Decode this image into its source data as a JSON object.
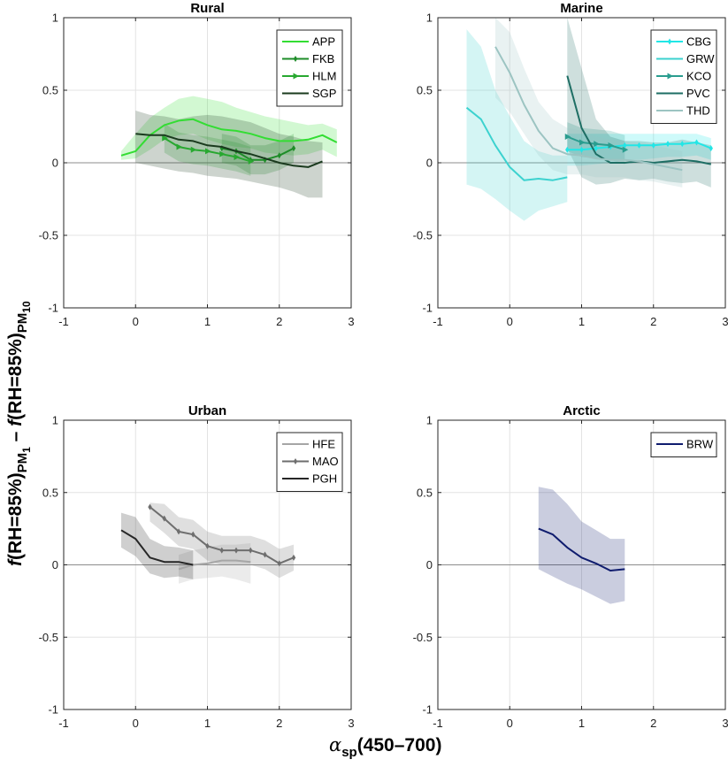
{
  "ylabel": {
    "f1": "f",
    "part1": "(RH=85%)",
    "sub1": "PM",
    "subsub1": "1",
    "minus": " – ",
    "f2": "f",
    "part2": "(RH=85%)",
    "sub2": "PM",
    "subsub2": "10"
  },
  "xlabel": {
    "alpha": "α",
    "sub": "sp",
    "range": "(450–700)"
  },
  "chart_data": [
    {
      "type": "line",
      "title": "Rural",
      "xlim": [
        -1,
        3
      ],
      "ylim": [
        -1,
        1
      ],
      "xticks": [
        "-1",
        "0",
        "1",
        "2",
        "3"
      ],
      "yticks": [
        "-1",
        "-0.5",
        "0",
        "0.5",
        "1"
      ],
      "grid": true,
      "legend_position": "top-right",
      "series": [
        {
          "name": "APP",
          "color": "#33dd33",
          "marker": "none",
          "x": [
            -0.2,
            0,
            0.2,
            0.4,
            0.6,
            0.8,
            1.0,
            1.2,
            1.4,
            1.6,
            1.8,
            2.0,
            2.2,
            2.4,
            2.6,
            2.8
          ],
          "y": [
            0.05,
            0.08,
            0.19,
            0.26,
            0.29,
            0.3,
            0.26,
            0.23,
            0.22,
            0.2,
            0.17,
            0.15,
            0.15,
            0.16,
            0.19,
            0.14
          ],
          "band_lower": [
            0.02,
            0.03,
            0.09,
            0.16,
            0.19,
            0.2,
            0.16,
            0.13,
            0.11,
            0.1,
            0.07,
            0.06,
            0.05,
            0.06,
            0.09,
            0.04
          ],
          "band_upper": [
            0.08,
            0.2,
            0.31,
            0.38,
            0.44,
            0.46,
            0.44,
            0.42,
            0.38,
            0.35,
            0.32,
            0.3,
            0.28,
            0.26,
            0.27,
            0.23
          ]
        },
        {
          "name": "FKB",
          "color": "#1e8c28",
          "marker": "dot",
          "x": [
            1.2,
            1.4,
            1.6,
            1.8,
            2.0,
            2.2
          ],
          "y": [
            0.1,
            0.08,
            0.02,
            0.02,
            0.05,
            0.1
          ],
          "band_lower": [
            0.0,
            -0.02,
            -0.08,
            -0.08,
            -0.05,
            0.0
          ],
          "band_upper": [
            0.2,
            0.18,
            0.12,
            0.12,
            0.15,
            0.2
          ]
        },
        {
          "name": "HLM",
          "color": "#28a830",
          "marker": "triangle",
          "x": [
            0.4,
            0.6,
            0.8,
            1.0,
            1.2,
            1.4,
            1.6
          ],
          "y": [
            0.17,
            0.11,
            0.09,
            0.08,
            0.06,
            0.04,
            0.01
          ],
          "band_lower": [
            0.07,
            0.01,
            -0.01,
            -0.02,
            -0.04,
            -0.06,
            -0.09
          ],
          "band_upper": [
            0.27,
            0.21,
            0.19,
            0.18,
            0.16,
            0.14,
            0.11
          ]
        },
        {
          "name": "SGP",
          "color": "#1a3a1e",
          "marker": "none",
          "x": [
            0,
            0.2,
            0.4,
            0.6,
            0.8,
            1.0,
            1.2,
            1.4,
            1.6,
            1.8,
            2.0,
            2.2,
            2.4,
            2.6
          ],
          "y": [
            0.2,
            0.19,
            0.19,
            0.16,
            0.15,
            0.12,
            0.11,
            0.08,
            0.06,
            0.03,
            0.0,
            -0.02,
            -0.03,
            0.01
          ],
          "band_lower": [
            0.0,
            -0.02,
            -0.04,
            -0.06,
            -0.07,
            -0.09,
            -0.1,
            -0.11,
            -0.13,
            -0.15,
            -0.17,
            -0.2,
            -0.24,
            -0.24
          ],
          "band_upper": [
            0.36,
            0.33,
            0.32,
            0.3,
            0.32,
            0.33,
            0.32,
            0.3,
            0.28,
            0.24,
            0.2,
            0.18,
            0.15,
            0.14
          ]
        }
      ]
    },
    {
      "type": "line",
      "title": "Marine",
      "xlim": [
        -1,
        3
      ],
      "ylim": [
        -1,
        1
      ],
      "xticks": [
        "-1",
        "0",
        "1",
        "2",
        "3"
      ],
      "yticks": [
        "-1",
        "-0.5",
        "0",
        "0.5",
        "1"
      ],
      "grid": true,
      "legend_position": "top-right",
      "series": [
        {
          "name": "CBG",
          "color": "#22e6e6",
          "marker": "dot",
          "x": [
            0.8,
            1.0,
            1.2,
            1.4,
            1.6,
            1.8,
            2.0,
            2.2,
            2.4,
            2.6,
            2.8
          ],
          "y": [
            0.09,
            0.09,
            0.1,
            0.11,
            0.12,
            0.12,
            0.12,
            0.13,
            0.13,
            0.14,
            0.1
          ],
          "band_lower": [
            -0.02,
            -0.02,
            -0.01,
            0.0,
            0.02,
            0.02,
            0.03,
            0.04,
            0.04,
            0.05,
            0.02
          ],
          "band_upper": [
            0.2,
            0.2,
            0.2,
            0.2,
            0.2,
            0.2,
            0.2,
            0.2,
            0.2,
            0.2,
            0.17
          ]
        },
        {
          "name": "GRW",
          "color": "#3cd2cf",
          "marker": "none",
          "x": [
            -0.6,
            -0.4,
            -0.2,
            0,
            0.2,
            0.4,
            0.6,
            0.8
          ],
          "y": [
            0.38,
            0.3,
            0.12,
            -0.03,
            -0.12,
            -0.11,
            -0.12,
            -0.1
          ],
          "band_lower": [
            -0.15,
            -0.18,
            -0.25,
            -0.33,
            -0.4,
            -0.33,
            -0.3,
            -0.27
          ],
          "band_upper": [
            0.92,
            0.8,
            0.5,
            0.32,
            0.15,
            0.08,
            0.05,
            0.05
          ]
        },
        {
          "name": "KCO",
          "color": "#2a9d8f",
          "marker": "triangle",
          "x": [
            0.8,
            1.0,
            1.2,
            1.4,
            1.6
          ],
          "y": [
            0.18,
            0.14,
            0.13,
            0.12,
            0.09
          ],
          "band_lower": [
            0.08,
            0.04,
            0.03,
            0.02,
            -0.01
          ],
          "band_upper": [
            0.28,
            0.24,
            0.23,
            0.22,
            0.19
          ]
        },
        {
          "name": "PVC",
          "color": "#1e6e64",
          "marker": "none",
          "x": [
            0.8,
            1.0,
            1.2,
            1.4,
            1.6,
            1.8,
            2.0,
            2.2,
            2.4,
            2.6,
            2.8
          ],
          "y": [
            0.6,
            0.24,
            0.06,
            0.0,
            0.0,
            0.01,
            0.0,
            0.01,
            0.02,
            0.01,
            -0.01
          ],
          "band_lower": [
            0.1,
            -0.1,
            -0.15,
            -0.14,
            -0.11,
            -0.12,
            -0.11,
            -0.13,
            -0.14,
            -0.13,
            -0.17
          ],
          "band_upper": [
            1.0,
            0.65,
            0.3,
            0.18,
            0.15,
            0.15,
            0.14,
            0.14,
            0.16,
            0.14,
            0.12
          ]
        },
        {
          "name": "THD",
          "color": "#9cc4c2",
          "marker": "none",
          "x": [
            -0.2,
            0,
            0.2,
            0.4,
            0.6,
            0.8,
            1.0,
            1.2,
            1.4,
            1.6,
            1.8,
            2.0,
            2.2,
            2.4
          ],
          "y": [
            0.8,
            0.62,
            0.4,
            0.22,
            0.1,
            0.06,
            0.05,
            0.03,
            0.02,
            0.02,
            0.01,
            -0.01,
            -0.03,
            -0.05
          ],
          "band_lower": [
            0.45,
            0.35,
            0.2,
            0.05,
            -0.05,
            -0.08,
            -0.08,
            -0.1,
            -0.1,
            -0.1,
            -0.12,
            -0.13,
            -0.15,
            -0.17
          ],
          "band_upper": [
            1.0,
            0.9,
            0.65,
            0.42,
            0.3,
            0.24,
            0.22,
            0.18,
            0.16,
            0.15,
            0.14,
            0.12,
            0.1,
            0.08
          ]
        }
      ]
    },
    {
      "type": "line",
      "title": "Urban",
      "xlim": [
        -1,
        3
      ],
      "ylim": [
        -1,
        1
      ],
      "xticks": [
        "-1",
        "0",
        "1",
        "2",
        "3"
      ],
      "yticks": [
        "-1",
        "-0.5",
        "0",
        "0.5",
        "1"
      ],
      "grid": true,
      "legend_position": "top-right",
      "series": [
        {
          "name": "HFE",
          "color": "#a6a6a6",
          "marker": "none",
          "x": [
            0.6,
            0.8,
            1.0,
            1.2,
            1.4,
            1.6
          ],
          "y": [
            -0.03,
            0.0,
            0.01,
            0.03,
            0.03,
            0.02
          ],
          "band_lower": [
            -0.13,
            -0.1,
            -0.09,
            -0.08,
            -0.1,
            -0.13
          ],
          "band_upper": [
            0.07,
            0.1,
            0.12,
            0.14,
            0.14,
            0.15
          ]
        },
        {
          "name": "MAO",
          "color": "#6e6e6e",
          "marker": "dot",
          "x": [
            0.2,
            0.4,
            0.6,
            0.8,
            1.0,
            1.2,
            1.4,
            1.6,
            1.8,
            2.0,
            2.2
          ],
          "y": [
            0.4,
            0.32,
            0.23,
            0.21,
            0.13,
            0.1,
            0.1,
            0.1,
            0.07,
            0.01,
            0.05
          ],
          "band_lower": [
            0.3,
            0.22,
            0.13,
            0.11,
            0.03,
            0.0,
            0.0,
            0.0,
            -0.03,
            -0.09,
            -0.04
          ],
          "band_upper": [
            0.43,
            0.42,
            0.33,
            0.31,
            0.23,
            0.2,
            0.2,
            0.2,
            0.17,
            0.11,
            0.14
          ]
        },
        {
          "name": "PGH",
          "color": "#262626",
          "marker": "none",
          "x": [
            -0.2,
            0,
            0.2,
            0.4,
            0.6,
            0.8
          ],
          "y": [
            0.24,
            0.18,
            0.05,
            0.02,
            0.02,
            0.0
          ],
          "band_lower": [
            0.12,
            0.06,
            -0.06,
            -0.09,
            -0.08,
            -0.1
          ],
          "band_upper": [
            0.36,
            0.33,
            0.18,
            0.13,
            0.12,
            0.1
          ]
        }
      ]
    },
    {
      "type": "line",
      "title": "Arctic",
      "xlim": [
        -1,
        3
      ],
      "ylim": [
        -1,
        1
      ],
      "xticks": [
        "-1",
        "0",
        "1",
        "2",
        "3"
      ],
      "yticks": [
        "-1",
        "-0.5",
        "0",
        "0.5",
        "1"
      ],
      "grid": true,
      "legend_position": "top-right",
      "series": [
        {
          "name": "BRW",
          "color": "#0f1c6e",
          "marker": "none",
          "x": [
            0.4,
            0.6,
            0.8,
            1.0,
            1.2,
            1.4,
            1.6
          ],
          "y": [
            0.25,
            0.21,
            0.12,
            0.05,
            0.01,
            -0.04,
            -0.03
          ],
          "band_lower": [
            -0.03,
            -0.08,
            -0.13,
            -0.17,
            -0.22,
            -0.27,
            -0.25
          ],
          "band_upper": [
            0.54,
            0.52,
            0.42,
            0.3,
            0.24,
            0.18,
            0.18
          ]
        }
      ]
    }
  ]
}
